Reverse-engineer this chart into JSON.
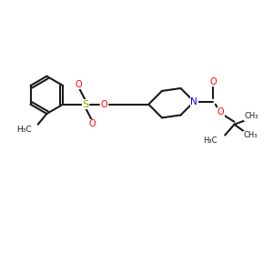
{
  "bg_color": "#ffffff",
  "bond_color": "#1a1a1a",
  "line_width": 1.5,
  "atom_colors": {
    "O": "#ff0000",
    "N": "#0000ff",
    "S": "#999900",
    "C": "#1a1a1a"
  },
  "xlim": [
    0,
    10
  ],
  "ylim": [
    0,
    10
  ]
}
